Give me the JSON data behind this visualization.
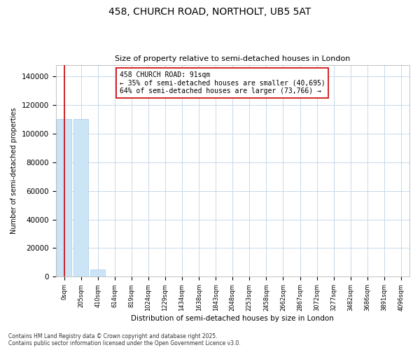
{
  "title_line1": "458, CHURCH ROAD, NORTHOLT, UB5 5AT",
  "title_line2": "Size of property relative to semi-detached houses in London",
  "xlabel": "Distribution of semi-detached houses by size in London",
  "ylabel": "Number of semi-detached properties",
  "bar_labels": [
    "0sqm",
    "205sqm",
    "410sqm",
    "614sqm",
    "819sqm",
    "1024sqm",
    "1229sqm",
    "1434sqm",
    "1638sqm",
    "1843sqm",
    "2048sqm",
    "2253sqm",
    "2458sqm",
    "2662sqm",
    "2867sqm",
    "3072sqm",
    "3277sqm",
    "3482sqm",
    "3686sqm",
    "3891sqm",
    "4096sqm"
  ],
  "bar_values": [
    110000,
    110000,
    5000,
    400,
    150,
    80,
    40,
    25,
    15,
    10,
    8,
    6,
    5,
    4,
    3,
    3,
    2,
    2,
    1,
    1,
    1
  ],
  "bar_color": "#cce5f6",
  "bar_edge_color": "#a8c8e8",
  "property_line_x": 0.0,
  "annotation_title": "458 CHURCH ROAD: 91sqm",
  "annotation_line1": "← 35% of semi-detached houses are smaller (40,695)",
  "annotation_line2": "64% of semi-detached houses are larger (73,766) →",
  "annotation_box_color": "#ffffff",
  "annotation_box_edge": "#cc0000",
  "red_line_color": "#cc0000",
  "ylim": [
    0,
    148000
  ],
  "yticks": [
    0,
    20000,
    40000,
    60000,
    80000,
    100000,
    120000,
    140000
  ],
  "background_color": "#ffffff",
  "grid_color": "#c8d8ea",
  "footer_line1": "Contains HM Land Registry data © Crown copyright and database right 2025.",
  "footer_line2": "Contains public sector information licensed under the Open Government Licence v3.0."
}
